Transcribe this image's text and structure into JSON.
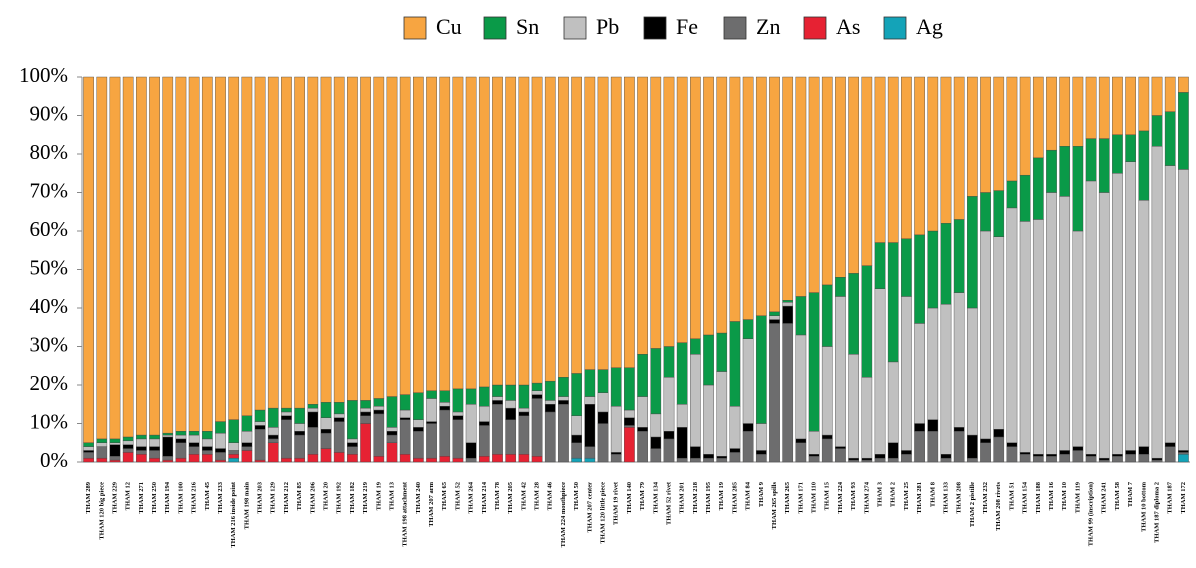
{
  "chart_data": {
    "type": "stacked_bar_100",
    "categories": [
      "THAM 289",
      "THAM 120 big piece",
      "THAM 229",
      "THAM 12",
      "THAM 271",
      "THAM 250",
      "THAM 194",
      "THAM 100",
      "THAM 216",
      "THAM 45",
      "THAM 233",
      "THAM 216 inside point",
      "THAM 198 main",
      "THAM 203",
      "THAM 129",
      "THAM 212",
      "THAM 85",
      "THAM 206",
      "THAM 20",
      "THAM 192",
      "THAM 182",
      "THAM 219",
      "THAM 19",
      "THAM 13",
      "THAM 198 attachment",
      "THAM 240",
      "THAM 207 arm",
      "THAM 65",
      "THAM 52",
      "THAM 264",
      "THAM 214",
      "THAM 78",
      "THAM 205",
      "THAM 42",
      "THAM 28",
      "THAM 46",
      "THAM 224 mouthpiece",
      "THAM 50",
      "THAM 207 center",
      "THAM 120 little piece",
      "THAM 19 rivet",
      "THAM 140",
      "THAM 79",
      "THAM 134",
      "THAM 52 rivet",
      "THAM 201",
      "THAM 218",
      "THAM 195",
      "THAM 19",
      "THAM 285",
      "THAM 84",
      "THAM 9",
      "THAM 265 spills",
      "THAM 265",
      "THAM 171",
      "THAM 110",
      "THAM 15",
      "THAM 224",
      "THAM 93",
      "THAM 274",
      "THAM 3",
      "THAM 2",
      "THAM 25",
      "THAM 281",
      "THAM 8",
      "THAM 133",
      "THAM 208",
      "THAM 2 pistille",
      "THAM 232",
      "THAM 208 rivets",
      "THAM 51",
      "THAM 154",
      "THAM 188",
      "THAM 16",
      "THAM 10",
      "THAM 119",
      "THAM 99 (inscription)",
      "THAM 241",
      "THAM 58",
      "THAM 7",
      "THAM 10 bottom",
      "THAM 187 diploma 2",
      "THAM 187",
      "THAM 172"
    ],
    "series": [
      {
        "name": "Cu",
        "color": "#f7a541",
        "values": [
          95,
          94,
          94,
          93.5,
          93,
          93,
          92.5,
          92,
          92,
          92,
          89.5,
          89,
          88,
          86.5,
          86,
          86,
          86,
          85,
          84.5,
          84.5,
          84,
          84,
          83.5,
          83,
          82.5,
          82,
          81.5,
          81.5,
          81,
          81,
          80.5,
          80,
          80,
          80,
          79.5,
          79,
          78,
          77,
          76,
          76,
          75.5,
          75.5,
          72,
          70.5,
          70,
          69,
          68,
          67,
          66.5,
          63.5,
          63,
          62,
          61,
          58,
          57,
          56,
          54,
          52,
          51,
          49,
          43,
          43,
          42,
          41,
          40,
          38,
          37,
          31,
          30,
          29.5,
          27,
          25.5,
          21,
          19,
          18,
          18,
          16,
          16,
          15,
          15,
          14,
          10,
          9,
          4
        ]
      },
      {
        "name": "Sn",
        "color": "#0a9a48",
        "values": [
          1,
          1,
          1,
          1,
          1,
          1,
          0.5,
          1,
          1,
          2,
          3,
          6,
          4,
          3,
          5,
          1,
          4,
          1,
          4,
          3,
          10,
          2,
          2,
          8,
          4,
          7,
          2,
          3,
          6,
          4,
          5,
          3,
          4,
          6,
          2,
          5,
          5,
          11,
          7,
          6,
          10,
          11,
          11,
          17,
          8,
          16,
          4,
          13,
          10,
          22,
          5,
          28,
          1,
          0.5,
          10,
          36,
          16,
          5,
          21,
          29,
          12,
          31,
          15,
          23,
          20,
          21,
          19,
          29,
          10,
          12,
          7,
          12,
          16,
          11,
          13,
          22,
          11,
          14,
          10,
          7,
          18,
          8,
          14,
          20
        ]
      },
      {
        "name": "Pb",
        "color": "#c0c0c0",
        "values": [
          1,
          1,
          0.5,
          1,
          2,
          2,
          0.5,
          1,
          2,
          2,
          4,
          2,
          3,
          1,
          2,
          1,
          2,
          1,
          3,
          1,
          1,
          1,
          1,
          1,
          2,
          2,
          6,
          1,
          1,
          10,
          4,
          1,
          2,
          1,
          1,
          1,
          1,
          5,
          2,
          5,
          12,
          2,
          8,
          6,
          14,
          6,
          24,
          18,
          22,
          11,
          22,
          7,
          1,
          1,
          27,
          6,
          23,
          39,
          27,
          21,
          43,
          21,
          40,
          26,
          29,
          39,
          35,
          33,
          54,
          50,
          61,
          60,
          61,
          68,
          66,
          56,
          71,
          69,
          73,
          75,
          64,
          81,
          72,
          73
        ]
      },
      {
        "name": "Fe",
        "color": "#000000",
        "values": [
          0.5,
          0,
          3,
          1,
          1,
          1,
          5,
          1,
          1,
          1,
          1,
          0,
          1,
          1,
          1,
          1,
          1,
          4,
          1,
          1,
          1,
          1,
          1,
          1,
          0.5,
          1,
          0.5,
          1,
          1,
          4,
          1,
          1,
          3,
          1,
          1,
          2,
          1,
          2,
          11,
          3,
          0.5,
          2,
          1,
          3,
          2,
          8,
          3,
          1,
          0.5,
          1,
          2,
          1,
          1,
          4.5,
          1,
          0.5,
          1,
          0.5,
          0.5,
          0.5,
          1,
          4,
          1,
          2,
          3,
          1,
          1,
          6,
          1,
          2,
          1,
          0.5,
          0.5,
          0.5,
          1,
          1,
          0.5,
          0.5,
          0.5,
          1,
          2,
          0.5,
          1,
          0.5
        ]
      },
      {
        "name": "Zn",
        "color": "#6d6d6e",
        "values": [
          1.5,
          3,
          1,
          1,
          1,
          2,
          1,
          4,
          2,
          1,
          2,
          1,
          1,
          8,
          1,
          10,
          6,
          7,
          4,
          8,
          2,
          2,
          11,
          2,
          9,
          7,
          9,
          12,
          10,
          1,
          8,
          13,
          9,
          10,
          15,
          13,
          15,
          4,
          3,
          10,
          2,
          0.5,
          8,
          3.5,
          6,
          1,
          1,
          1,
          1,
          2.5,
          8,
          2,
          36,
          36,
          5,
          1.5,
          6,
          3.5,
          0.5,
          0.5,
          1,
          1,
          2,
          8,
          8,
          1,
          8,
          1,
          5,
          6.5,
          4,
          2,
          1.5,
          1.5,
          2,
          3,
          1.5,
          0.5,
          1.5,
          2,
          2,
          0.5,
          4,
          0.5
        ]
      },
      {
        "name": "As",
        "color": "#e62233",
        "values": [
          1,
          1,
          0.5,
          2.5,
          2,
          1,
          0.5,
          1,
          2,
          2,
          0.5,
          1,
          3,
          0.5,
          5,
          1,
          1,
          2,
          3.5,
          2.5,
          2,
          10,
          1.5,
          5,
          2,
          1,
          1,
          1.5,
          1,
          0,
          1.5,
          2,
          2,
          2,
          1.5,
          0,
          0,
          0,
          0,
          0,
          0,
          9,
          0,
          0,
          0,
          0,
          0,
          0,
          0,
          0,
          0,
          0,
          0,
          0,
          0,
          0,
          0,
          0,
          0,
          0,
          0,
          0,
          0,
          0,
          0,
          0,
          0,
          0,
          0,
          0,
          0,
          0,
          0,
          0,
          0,
          0,
          0,
          0,
          0,
          0,
          0,
          0,
          0,
          0
        ]
      },
      {
        "name": "Ag",
        "color": "#14a3b8",
        "values": [
          0,
          0,
          0,
          0,
          0,
          0,
          0,
          0,
          0,
          0,
          0,
          1,
          0,
          0,
          0,
          0,
          0,
          0,
          0,
          0,
          0,
          0,
          0,
          0,
          0,
          0,
          0,
          0,
          0,
          0,
          0,
          0,
          0,
          0,
          0,
          0,
          0,
          1,
          1,
          0,
          0,
          0,
          0,
          0,
          0,
          0,
          0,
          0,
          0,
          0,
          0,
          0,
          0,
          0,
          0,
          0,
          0,
          0,
          0,
          0,
          0,
          0,
          0,
          0,
          0,
          0,
          0,
          0,
          0,
          0,
          0,
          0,
          0,
          0,
          0,
          0,
          0,
          0,
          0,
          0,
          0,
          0,
          0,
          2
        ]
      }
    ],
    "ylim": [
      0,
      100
    ],
    "yticks": [
      {
        "value": 0,
        "label": "0%"
      },
      {
        "value": 10,
        "label": "10%"
      },
      {
        "value": 20,
        "label": "20%"
      },
      {
        "value": 30,
        "label": "30%"
      },
      {
        "value": 40,
        "label": "40%"
      },
      {
        "value": 50,
        "label": "50%"
      },
      {
        "value": 60,
        "label": "60%"
      },
      {
        "value": 70,
        "label": "70%"
      },
      {
        "value": 80,
        "label": "80%"
      },
      {
        "value": 90,
        "label": "90%"
      },
      {
        "value": 100,
        "label": "100%"
      }
    ],
    "legend": "top"
  }
}
